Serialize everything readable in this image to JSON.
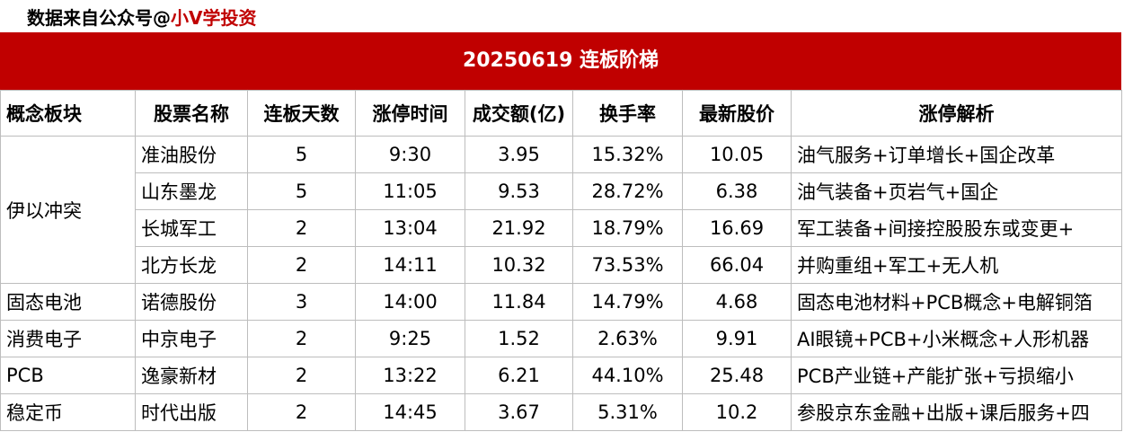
{
  "banner": {
    "prefix": "数据来自公众号@",
    "highlight": "小V学投资"
  },
  "title": "20250619  连板阶梯",
  "table": {
    "headers": [
      "概念板块",
      "股票名称",
      "连板天数",
      "涨停时间",
      "成交额(亿)",
      "换手率",
      "最新股价",
      "涨停解析"
    ],
    "groups": [
      {
        "sector": "伊以冲突",
        "rows": [
          [
            "准油股份",
            "5",
            "9:30",
            "3.95",
            "15.32%",
            "10.05",
            "油气服务+订单增长+国企改革"
          ],
          [
            "山东墨龙",
            "5",
            "11:05",
            "9.53",
            "28.72%",
            "6.38",
            "油气装备+页岩气+国企"
          ],
          [
            "长城军工",
            "2",
            "13:04",
            "21.92",
            "18.79%",
            "16.69",
            "军工装备+间接控股股东或变更+"
          ],
          [
            "北方长龙",
            "2",
            "14:11",
            "10.32",
            "73.53%",
            "66.04",
            "并购重组+军工+无人机"
          ]
        ]
      },
      {
        "sector": "固态电池",
        "rows": [
          [
            "诺德股份",
            "3",
            "14:00",
            "11.84",
            "14.79%",
            "4.68",
            "固态电池材料+PCB概念+电解铜箔"
          ]
        ]
      },
      {
        "sector": "消费电子",
        "rows": [
          [
            "中京电子",
            "2",
            "9:25",
            "1.52",
            "2.63%",
            "9.91",
            "AI眼镜+PCB+小米概念+人形机器"
          ]
        ]
      },
      {
        "sector": "PCB",
        "rows": [
          [
            "逸豪新材",
            "2",
            "13:22",
            "6.21",
            "44.10%",
            "25.48",
            "PCB产业链+产能扩张+亏损缩小"
          ]
        ]
      },
      {
        "sector": "稳定币",
        "rows": [
          [
            "时代出版",
            "2",
            "14:45",
            "3.67",
            "5.31%",
            "10.2",
            "参股京东金融+出版+课后服务+四"
          ]
        ]
      }
    ]
  }
}
